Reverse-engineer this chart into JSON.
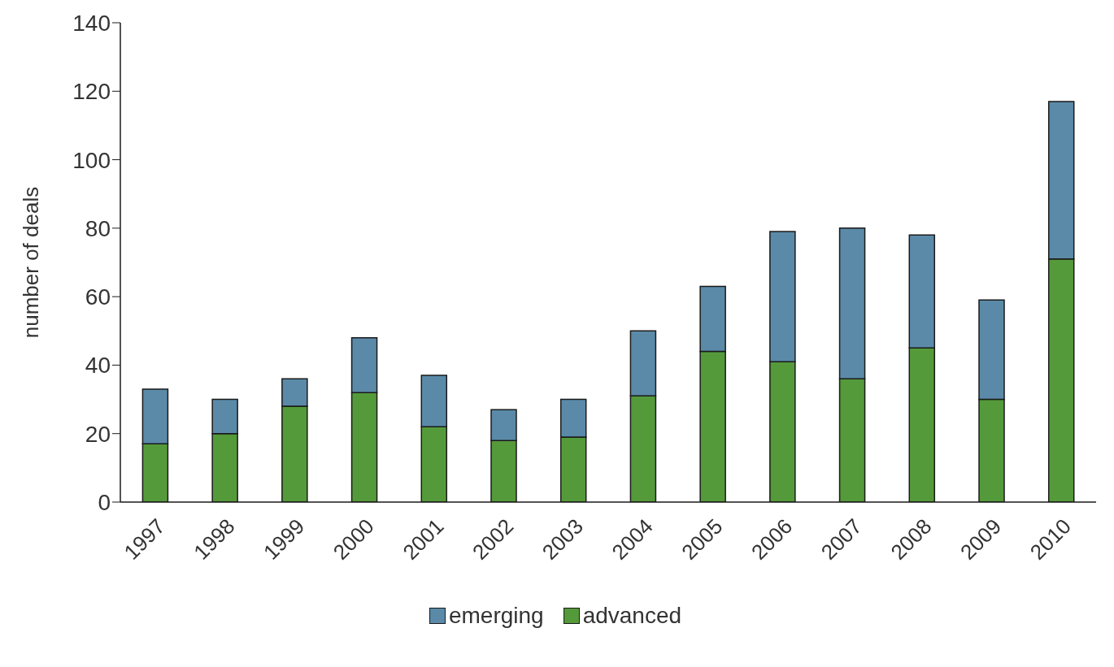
{
  "chart_data": {
    "type": "bar",
    "stacked": true,
    "ylabel": "number of deals",
    "categories": [
      "1997",
      "1998",
      "1999",
      "2000",
      "2001",
      "2002",
      "2003",
      "2004",
      "2005",
      "2006",
      "2007",
      "2008",
      "2009",
      "2010"
    ],
    "series": [
      {
        "name": "advanced",
        "color": "#559a3a",
        "values": [
          17,
          20,
          28,
          32,
          22,
          18,
          19,
          31,
          44,
          41,
          36,
          45,
          30,
          71
        ]
      },
      {
        "name": "emerging",
        "color": "#5b8aa8",
        "values": [
          16,
          10,
          8,
          16,
          15,
          9,
          11,
          19,
          19,
          38,
          44,
          33,
          29,
          46
        ]
      }
    ],
    "ylim": [
      0,
      140
    ],
    "yticks": [
      0,
      20,
      40,
      60,
      80,
      100,
      120,
      140
    ],
    "grid": false,
    "legend": "bottom"
  }
}
